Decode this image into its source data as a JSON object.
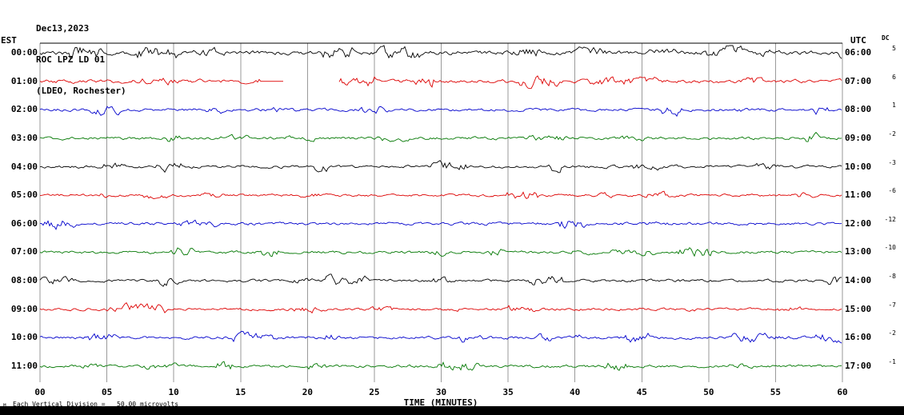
{
  "header": {
    "date": "Dec13,2023",
    "station": "ROC LPZ LD 01",
    "location": "(LDEO, Rochester)"
  },
  "axes": {
    "left_label": "EST",
    "right_label": "UTC",
    "dc_label": "DC",
    "x_title": "TIME (MINUTES)",
    "x_ticks": [
      "00",
      "05",
      "10",
      "15",
      "20",
      "25",
      "30",
      "35",
      "40",
      "45",
      "50",
      "55",
      "60"
    ]
  },
  "footer": {
    "scale_note": "Each Vertical Division =   50.00 microvolts",
    "corner_mark": "M"
  },
  "chart_data": {
    "type": "line",
    "title": "ROC LPZ LD 01 helicorder (LDEO, Rochester) Dec13,2023",
    "xlabel": "TIME (MINUTES)",
    "x_range_minutes": [
      0,
      60
    ],
    "grid_interval_minutes": 5,
    "vertical_division": "50.00 microvolts",
    "legend_position": "none",
    "grid": true,
    "trace_colors": {
      "black": "#000000",
      "red": "#dd0000",
      "blue": "#0000cc",
      "green": "#007700"
    },
    "rows": [
      {
        "est": "00:00",
        "utc": "06:00",
        "dc": "5",
        "color": "#000000",
        "amp": 1.4
      },
      {
        "est": "01:00",
        "utc": "07:00",
        "dc": "6",
        "color": "#dd0000",
        "amp": 1.3,
        "flat_minutes": [
          16.5,
          18.3
        ],
        "gap_minutes": [
          18.3,
          22.3
        ]
      },
      {
        "est": "02:00",
        "utc": "08:00",
        "dc": "1",
        "color": "#0000cc",
        "amp": 1.0
      },
      {
        "est": "03:00",
        "utc": "09:00",
        "dc": "-2",
        "color": "#007700",
        "amp": 1.0
      },
      {
        "est": "04:00",
        "utc": "10:00",
        "dc": "-3",
        "color": "#000000",
        "amp": 1.0
      },
      {
        "est": "05:00",
        "utc": "11:00",
        "dc": "-6",
        "color": "#dd0000",
        "amp": 0.9
      },
      {
        "est": "06:00",
        "utc": "12:00",
        "dc": "-12",
        "color": "#0000cc",
        "amp": 1.0
      },
      {
        "est": "07:00",
        "utc": "13:00",
        "dc": "-10",
        "color": "#007700",
        "amp": 1.0
      },
      {
        "est": "08:00",
        "utc": "14:00",
        "dc": "-8",
        "color": "#000000",
        "amp": 1.0
      },
      {
        "est": "09:00",
        "utc": "15:00",
        "dc": "-7",
        "color": "#dd0000",
        "amp": 0.9
      },
      {
        "est": "10:00",
        "utc": "16:00",
        "dc": "-2",
        "color": "#0000cc",
        "amp": 1.0
      },
      {
        "est": "11:00",
        "utc": "17:00",
        "dc": "-1",
        "color": "#007700",
        "amp": 1.0
      }
    ]
  }
}
